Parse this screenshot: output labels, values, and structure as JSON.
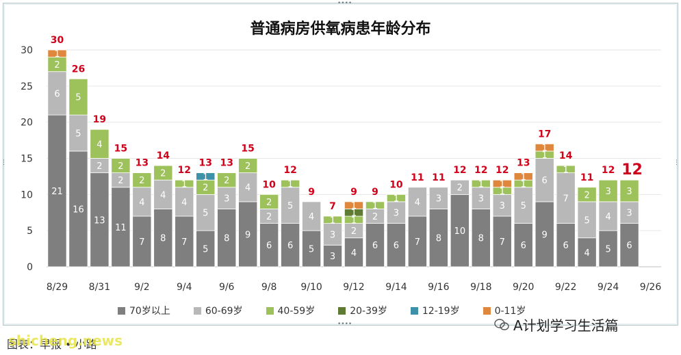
{
  "chart_data": {
    "type": "bar",
    "stacked": true,
    "title": "普通病房供氧病患年龄分布",
    "ylim": [
      0,
      30
    ],
    "yticks": [
      "0",
      "5",
      "10",
      "15",
      "20",
      "25",
      "30"
    ],
    "grid": true,
    "legend_position": "bottom",
    "categories": [
      "8/29",
      "8/30",
      "8/31",
      "9/1",
      "9/2",
      "9/3",
      "9/4",
      "9/5",
      "9/6",
      "9/7",
      "9/8",
      "9/9",
      "9/10",
      "9/11",
      "9/12",
      "9/13",
      "9/14",
      "9/15",
      "9/16",
      "9/17",
      "9/18",
      "9/19",
      "9/20",
      "9/21",
      "9/22",
      "9/23",
      "9/24",
      "9/25",
      "9/26"
    ],
    "x_tick_labels": [
      "8/29",
      "",
      "8/31",
      "",
      "9/2",
      "",
      "9/4",
      "",
      "9/6",
      "",
      "9/8",
      "",
      "9/10",
      "",
      "9/12",
      "",
      "9/14",
      "",
      "9/16",
      "",
      "9/18",
      "",
      "9/20",
      "",
      "9/22",
      "",
      "9/24",
      "",
      "9/26"
    ],
    "series": [
      {
        "name": "70岁以上",
        "color": "#7f7f7f",
        "values": [
          21,
          16,
          13,
          11,
          7,
          8,
          7,
          5,
          8,
          9,
          6,
          6,
          5,
          3,
          4,
          6,
          6,
          7,
          8,
          10,
          8,
          7,
          6,
          9,
          6,
          4,
          5,
          6,
          0
        ]
      },
      {
        "name": "60-69岁",
        "color": "#b8b8b8",
        "values": [
          6,
          5,
          2,
          2,
          4,
          4,
          4,
          5,
          3,
          4,
          2,
          5,
          4,
          3,
          2,
          2,
          3,
          4,
          3,
          2,
          3,
          3,
          5,
          6,
          7,
          5,
          4,
          3,
          0
        ]
      },
      {
        "name": "40-59岁",
        "color": "#9dc15b",
        "values": [
          2,
          5,
          4,
          2,
          2,
          2,
          1,
          2,
          2,
          2,
          2,
          1,
          0,
          1,
          1,
          1,
          1,
          0,
          0,
          0,
          1,
          1,
          1,
          1,
          1,
          2,
          3,
          3,
          0
        ]
      },
      {
        "name": "20-39岁",
        "color": "#5e7a33",
        "values": [
          0,
          0,
          0,
          0,
          0,
          0,
          0,
          0,
          0,
          0,
          0,
          0,
          0,
          0,
          1,
          0,
          0,
          0,
          0,
          0,
          0,
          0,
          0,
          0,
          0,
          0,
          0,
          0,
          0
        ]
      },
      {
        "name": "12-19岁",
        "color": "#3d91a8",
        "values": [
          0,
          0,
          0,
          0,
          0,
          0,
          0,
          1,
          0,
          0,
          0,
          0,
          0,
          0,
          0,
          0,
          0,
          0,
          0,
          0,
          0,
          0,
          0,
          0,
          0,
          0,
          0,
          0,
          0
        ]
      },
      {
        "name": "0-11岁",
        "color": "#e0873e",
        "values": [
          1,
          0,
          0,
          0,
          0,
          0,
          0,
          0,
          0,
          0,
          0,
          0,
          0,
          0,
          1,
          0,
          0,
          0,
          0,
          0,
          0,
          1,
          1,
          1,
          0,
          0,
          0,
          0,
          0
        ]
      }
    ],
    "totals": [
      "30",
      "26",
      "19",
      "15",
      "13",
      "14",
      "12",
      "13",
      "13",
      "15",
      "10",
      "12",
      "9",
      "7",
      "9",
      "9",
      "10",
      "11",
      "11",
      "12",
      "12",
      "12",
      "13",
      "17",
      "14",
      "11",
      "12",
      "12",
      ""
    ],
    "highlight_total_index": 27,
    "total_label_color": "#d0021b"
  },
  "footer": {
    "source_text": "图表：早报 • 小路",
    "watermark": "shicheng.news",
    "brand_text": "A计划学习生活篇"
  }
}
